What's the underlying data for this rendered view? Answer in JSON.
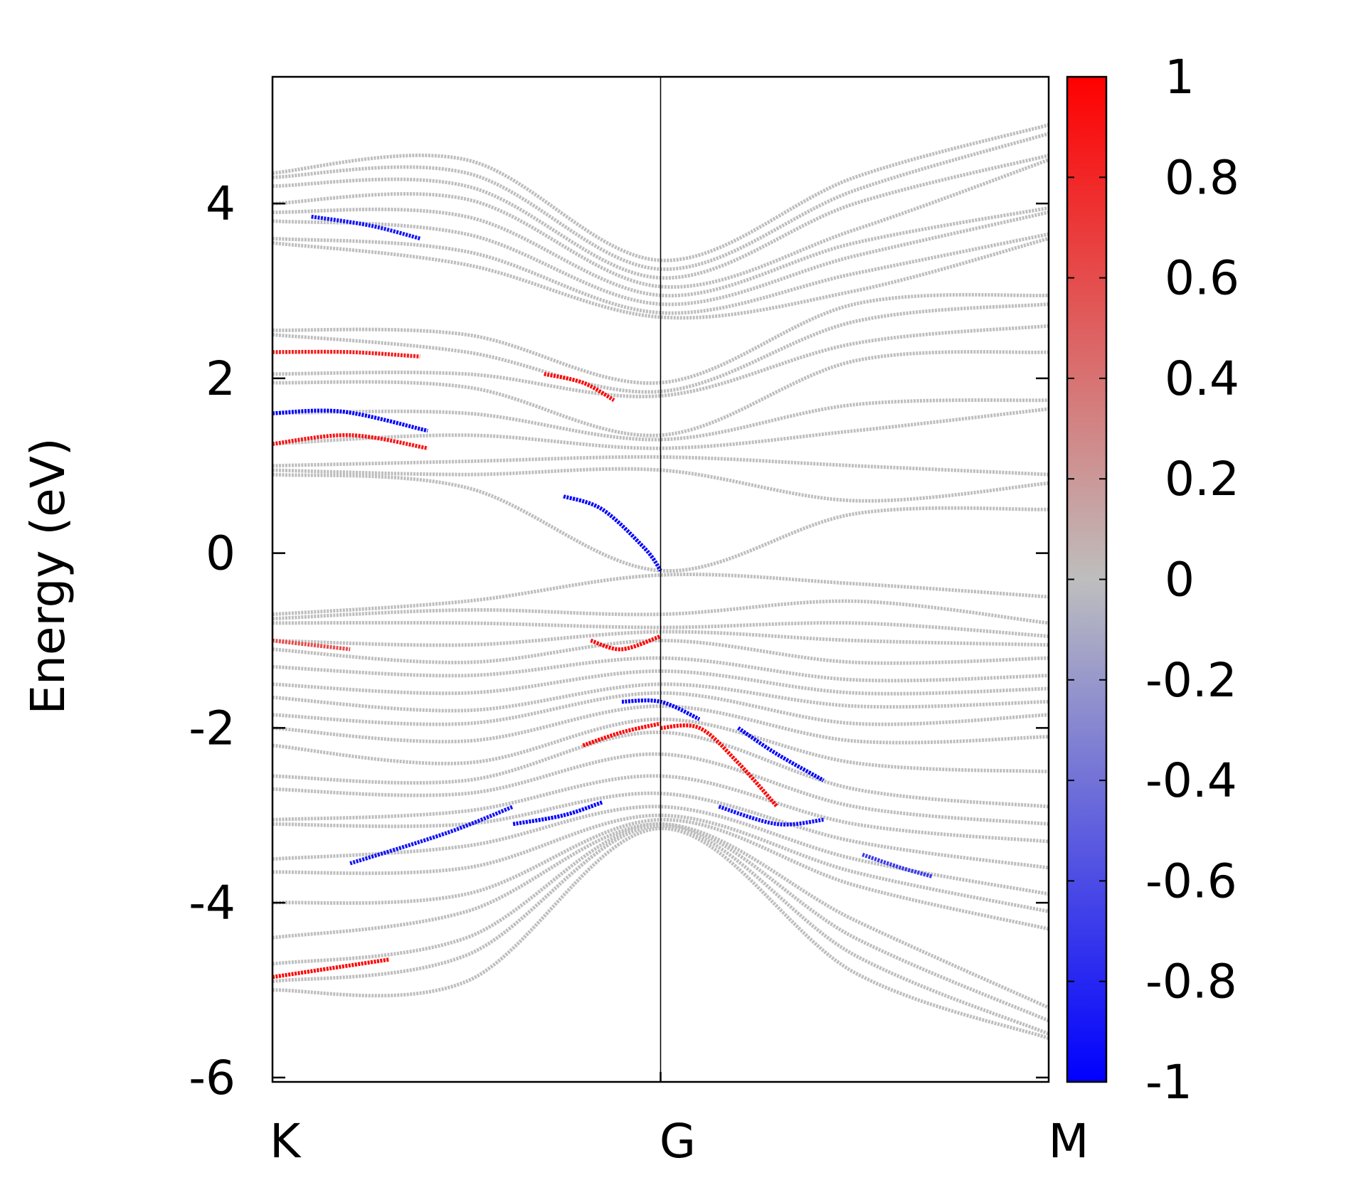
{
  "chart_data": {
    "type": "scatter",
    "ylabel": "Energy (eV)",
    "ylim": [
      -6.05,
      5.45
    ],
    "yticks": [
      -6,
      -4,
      -2,
      0,
      2,
      4
    ],
    "ytick_labels": [
      "-6",
      "-4",
      "-2",
      "0",
      "2",
      "4"
    ],
    "x_kpoints": [
      "K",
      "G",
      "M"
    ],
    "x_kpoint_positions": [
      0,
      1,
      2
    ],
    "xlim": [
      0,
      2
    ],
    "grid": false,
    "legend": "none",
    "colorbar": {
      "range": [
        -1,
        1
      ],
      "ticks": [
        1,
        0.8,
        0.6,
        0.4,
        0.2,
        0,
        -0.2,
        -0.4,
        -0.6,
        -0.8,
        -1
      ],
      "tick_labels": [
        "1",
        "0.8",
        "0.6",
        "0.4",
        "0.2",
        "0",
        "-0.2",
        "-0.4",
        "-0.6",
        "-0.8",
        "-1"
      ],
      "colors": {
        "low": "#0000ff",
        "mid": "#bebebe",
        "high": "#ff0000"
      }
    },
    "bands": [
      {
        "x": [
          0,
          0.5,
          1,
          1.5,
          2
        ],
        "y": [
          4.35,
          4.5,
          3.35,
          4.3,
          4.9
        ]
      },
      {
        "x": [
          0,
          0.5,
          1,
          1.5,
          2
        ],
        "y": [
          4.3,
          4.35,
          3.25,
          4.15,
          4.8
        ]
      },
      {
        "x": [
          0,
          0.5,
          1,
          1.5,
          2
        ],
        "y": [
          4.2,
          4.2,
          3.15,
          4.0,
          4.55
        ]
      },
      {
        "x": [
          0,
          0.5,
          1,
          1.5,
          2
        ],
        "y": [
          4.0,
          4.05,
          3.05,
          3.7,
          4.5
        ]
      },
      {
        "x": [
          0,
          0.5,
          1,
          1.5,
          2
        ],
        "y": [
          3.9,
          3.85,
          2.95,
          3.55,
          3.95
        ]
      },
      {
        "x": [
          0,
          0.5,
          1,
          1.5,
          2
        ],
        "y": [
          3.8,
          3.65,
          2.85,
          3.4,
          3.9
        ]
      },
      {
        "x": [
          0,
          0.5,
          1,
          1.5,
          2
        ],
        "y": [
          3.6,
          3.45,
          2.75,
          3.2,
          3.65
        ]
      },
      {
        "x": [
          0,
          0.5,
          1,
          1.5,
          2
        ],
        "y": [
          3.55,
          3.3,
          2.7,
          3.0,
          3.6
        ]
      },
      {
        "x": [
          0,
          0.5,
          1,
          1.5,
          2
        ],
        "y": [
          2.55,
          2.5,
          1.95,
          2.85,
          2.95
        ]
      },
      {
        "x": [
          0,
          0.5,
          1,
          1.5,
          2
        ],
        "y": [
          2.5,
          2.3,
          1.85,
          2.65,
          2.85
        ]
      },
      {
        "x": [
          0,
          0.5,
          1,
          1.5,
          2
        ],
        "y": [
          2.05,
          2.05,
          1.8,
          2.4,
          2.6
        ]
      },
      {
        "x": [
          0,
          0.5,
          1,
          1.5,
          2
        ],
        "y": [
          1.95,
          1.9,
          1.35,
          2.2,
          2.3
        ]
      },
      {
        "x": [
          0,
          0.5,
          1,
          1.5,
          2
        ],
        "y": [
          1.6,
          1.6,
          1.3,
          1.7,
          1.75
        ]
      },
      {
        "x": [
          0,
          0.5,
          1,
          1.5,
          2
        ],
        "y": [
          1.25,
          1.35,
          1.2,
          1.4,
          1.65
        ]
      },
      {
        "x": [
          0,
          0.5,
          1,
          1.5,
          2
        ],
        "y": [
          1.0,
          1.05,
          1.1,
          1.0,
          0.9
        ]
      },
      {
        "x": [
          0,
          0.5,
          1,
          1.5,
          2
        ],
        "y": [
          0.95,
          0.9,
          0.95,
          0.6,
          0.8
        ]
      },
      {
        "x": [
          0,
          0.5,
          1,
          1.5,
          2
        ],
        "y": [
          0.9,
          0.75,
          -0.2,
          0.45,
          0.5
        ]
      },
      {
        "x": [
          0,
          0.5,
          1,
          1.5,
          2
        ],
        "y": [
          -0.7,
          -0.55,
          -0.25,
          -0.35,
          -0.5
        ]
      },
      {
        "x": [
          0,
          0.5,
          1,
          1.5,
          2
        ],
        "y": [
          -0.75,
          -0.65,
          -0.7,
          -0.55,
          -0.8
        ]
      },
      {
        "x": [
          0,
          0.5,
          1,
          1.5,
          2
        ],
        "y": [
          -0.8,
          -0.8,
          -0.85,
          -0.8,
          -0.95
        ]
      },
      {
        "x": [
          0,
          0.5,
          1,
          1.5,
          2
        ],
        "y": [
          -1.0,
          -1.05,
          -0.9,
          -1.0,
          -1.05
        ]
      },
      {
        "x": [
          0,
          0.5,
          1,
          1.5,
          2
        ],
        "y": [
          -1.1,
          -1.25,
          -1.0,
          -1.25,
          -1.2
        ]
      },
      {
        "x": [
          0,
          0.5,
          1,
          1.5,
          2
        ],
        "y": [
          -1.3,
          -1.4,
          -1.2,
          -1.45,
          -1.4
        ]
      },
      {
        "x": [
          0,
          0.5,
          1,
          1.5,
          2
        ],
        "y": [
          -1.5,
          -1.6,
          -1.35,
          -1.6,
          -1.55
        ]
      },
      {
        "x": [
          0,
          0.5,
          1,
          1.5,
          2
        ],
        "y": [
          -1.65,
          -1.8,
          -1.5,
          -1.75,
          -1.7
        ]
      },
      {
        "x": [
          0,
          0.5,
          1,
          1.5,
          2
        ],
        "y": [
          -1.85,
          -1.95,
          -1.6,
          -1.95,
          -1.85
        ]
      },
      {
        "x": [
          0,
          0.5,
          1,
          1.5,
          2
        ],
        "y": [
          -2.0,
          -2.15,
          -1.75,
          -2.15,
          -2.1
        ]
      },
      {
        "x": [
          0,
          0.5,
          1,
          1.5,
          2
        ],
        "y": [
          -2.2,
          -2.4,
          -1.9,
          -2.4,
          -2.5
        ]
      },
      {
        "x": [
          0,
          0.5,
          1,
          1.5,
          2
        ],
        "y": [
          -2.55,
          -2.6,
          -2.05,
          -2.7,
          -2.9
        ]
      },
      {
        "x": [
          0,
          0.5,
          1,
          1.5,
          2
        ],
        "y": [
          -2.7,
          -2.75,
          -2.3,
          -2.9,
          -3.1
        ]
      },
      {
        "x": [
          0,
          0.5,
          1,
          1.5,
          2
        ],
        "y": [
          -3.05,
          -2.95,
          -2.55,
          -3.1,
          -3.3
        ]
      },
      {
        "x": [
          0,
          0.5,
          1,
          1.5,
          2
        ],
        "y": [
          -3.1,
          -3.1,
          -2.75,
          -3.3,
          -3.6
        ]
      },
      {
        "x": [
          0,
          0.5,
          1,
          1.5,
          2
        ],
        "y": [
          -3.5,
          -3.35,
          -2.9,
          -3.5,
          -3.9
        ]
      },
      {
        "x": [
          0,
          0.5,
          1,
          1.5,
          2
        ],
        "y": [
          -3.65,
          -3.6,
          -3.0,
          -3.65,
          -4.1
        ]
      },
      {
        "x": [
          0,
          0.5,
          1,
          1.5,
          2
        ],
        "y": [
          -4.0,
          -3.9,
          -3.05,
          -3.8,
          -4.3
        ]
      },
      {
        "x": [
          0,
          0.5,
          1,
          1.5,
          2
        ],
        "y": [
          -4.4,
          -4.1,
          -3.1,
          -4.2,
          -5.2
        ]
      },
      {
        "x": [
          0,
          0.5,
          1,
          1.5,
          2
        ],
        "y": [
          -4.7,
          -4.4,
          -3.1,
          -4.4,
          -5.35
        ]
      },
      {
        "x": [
          0,
          0.5,
          1,
          1.5,
          2
        ],
        "y": [
          -4.9,
          -4.6,
          -3.12,
          -4.6,
          -5.5
        ]
      },
      {
        "x": [
          0,
          0.5,
          1,
          1.5,
          2
        ],
        "y": [
          -5.0,
          -4.9,
          -3.15,
          -4.8,
          -5.55
        ]
      }
    ],
    "highlights": [
      {
        "x": [
          0,
          0.18,
          0.4
        ],
        "y": [
          1.6,
          1.62,
          1.4
        ],
        "weight": -1
      },
      {
        "x": [
          0,
          0.2,
          0.4
        ],
        "y": [
          1.25,
          1.35,
          1.2
        ],
        "weight": 0.9
      },
      {
        "x": [
          0.75,
          0.85,
          0.96,
          1.0
        ],
        "y": [
          0.65,
          0.5,
          0.05,
          -0.2
        ],
        "weight": -1
      },
      {
        "x": [
          0.1,
          0.25,
          0.38
        ],
        "y": [
          3.85,
          3.75,
          3.6
        ],
        "weight": -0.9
      },
      {
        "x": [
          0.0,
          0.2,
          0.38
        ],
        "y": [
          2.3,
          2.3,
          2.25
        ],
        "weight": 0.85
      },
      {
        "x": [
          0.7,
          0.8,
          0.88
        ],
        "y": [
          2.05,
          1.95,
          1.75
        ],
        "weight": 1
      },
      {
        "x": [
          0.2,
          0.45,
          0.62
        ],
        "y": [
          -3.55,
          -3.2,
          -2.9
        ],
        "weight": -0.9
      },
      {
        "x": [
          0.8,
          0.9,
          1.0
        ],
        "y": [
          -2.2,
          -2.05,
          -1.95
        ],
        "weight": 1
      },
      {
        "x": [
          1.0,
          1.1,
          1.2,
          1.3
        ],
        "y": [
          -2.0,
          -2.0,
          -2.4,
          -2.9
        ],
        "weight": 1
      },
      {
        "x": [
          1.2,
          1.3,
          1.42
        ],
        "y": [
          -2.0,
          -2.3,
          -2.6
        ],
        "weight": -1
      },
      {
        "x": [
          0.82,
          0.9,
          1.0
        ],
        "y": [
          -1.0,
          -1.1,
          -0.95
        ],
        "weight": 1
      },
      {
        "x": [
          0.9,
          1.0,
          1.1
        ],
        "y": [
          -1.7,
          -1.7,
          -1.9
        ],
        "weight": -1
      },
      {
        "x": [
          0.0,
          0.15,
          0.3
        ],
        "y": [
          -4.85,
          -4.75,
          -4.65
        ],
        "weight": 1
      },
      {
        "x": [
          0.62,
          0.75,
          0.85
        ],
        "y": [
          -3.1,
          -3.0,
          -2.85
        ],
        "weight": -1
      },
      {
        "x": [
          1.15,
          1.3,
          1.42
        ],
        "y": [
          -2.9,
          -3.1,
          -3.05
        ],
        "weight": -0.9
      },
      {
        "x": [
          1.52,
          1.62,
          1.7
        ],
        "y": [
          -3.45,
          -3.6,
          -3.7
        ],
        "weight": -0.7
      },
      {
        "x": [
          0.0,
          0.1,
          0.2
        ],
        "y": [
          -1.0,
          -1.05,
          -1.1
        ],
        "weight": 0.6
      }
    ]
  }
}
